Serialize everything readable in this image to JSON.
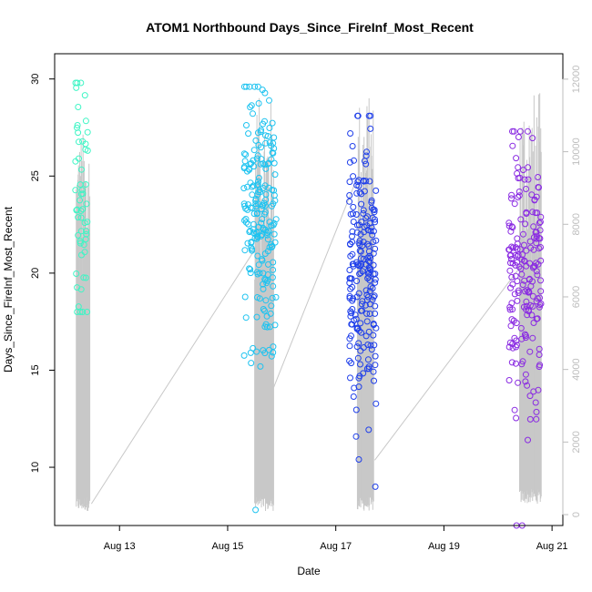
{
  "chart_data": {
    "type": "scatter",
    "title": "ATOM1 Northbound Days_Since_FireInf_Most_Recent",
    "xlabel": "Date",
    "ylabel": "Days_Since_FireInf_Most_Recent",
    "x_ticks": [
      {
        "day": 13,
        "label": "Aug 13"
      },
      {
        "day": 15,
        "label": "Aug 15"
      },
      {
        "day": 17,
        "label": "Aug 17"
      },
      {
        "day": 19,
        "label": "Aug 19"
      },
      {
        "day": 21,
        "label": "Aug 21"
      }
    ],
    "y_ticks": [
      10,
      15,
      20,
      25,
      30
    ],
    "y2_ticks": [
      0,
      2000,
      4000,
      6000,
      8000,
      10000,
      12000
    ],
    "xlim": [
      11.8,
      21.2
    ],
    "ylim": [
      7,
      31.3
    ],
    "y2lim": [
      -300,
      12700
    ],
    "grid": false,
    "legend": "none",
    "series": [
      {
        "name": "group 1",
        "color": "#3FF5C5",
        "x_center": 12.3,
        "x_spread": 0.12,
        "count": 55,
        "y_min": 18.0,
        "y_max": 29.8,
        "y_mean": 23.5,
        "y_sd": 3.0
      },
      {
        "name": "group 2",
        "color": "#1EC3F0",
        "x_center": 15.6,
        "x_spread": 0.3,
        "count": 210,
        "y_min": 7.8,
        "y_max": 29.6,
        "y_mean": 22.8,
        "y_sd": 3.3
      },
      {
        "name": "group 3",
        "color": "#1F3FEA",
        "x_center": 17.5,
        "x_spread": 0.25,
        "count": 210,
        "y_min": 9.0,
        "y_max": 28.1,
        "y_mean": 20.0,
        "y_sd": 3.2
      },
      {
        "name": "group 4",
        "color": "#8A2BE2",
        "x_center": 20.5,
        "x_spread": 0.3,
        "count": 190,
        "y_min": 7.0,
        "y_max": 27.3,
        "y_mean": 20.3,
        "y_sd": 3.5
      }
    ],
    "secondary_series": {
      "name": "secondary axis trace",
      "color": "#c8c8c8",
      "axis": "right",
      "segments": [
        {
          "x_start": 12.2,
          "x_end": 12.45,
          "y_low": 100,
          "y_high": 10600
        },
        {
          "x_start": 15.5,
          "x_end": 15.85,
          "y_low": 100,
          "y_high": 11500
        },
        {
          "x_start": 17.4,
          "x_end": 17.7,
          "y_low": 100,
          "y_high": 11600
        },
        {
          "x_start": 20.4,
          "x_end": 20.8,
          "y_low": 300,
          "y_high": 11700
        }
      ],
      "connectors": [
        {
          "x1": 12.48,
          "y1": 300,
          "x2": 15.5,
          "y2": 7300
        },
        {
          "x1": 15.85,
          "y1": 3500,
          "x2": 17.4,
          "y2": 9300
        },
        {
          "x1": 17.72,
          "y1": 1500,
          "x2": 20.4,
          "y2": 6800
        }
      ]
    }
  }
}
